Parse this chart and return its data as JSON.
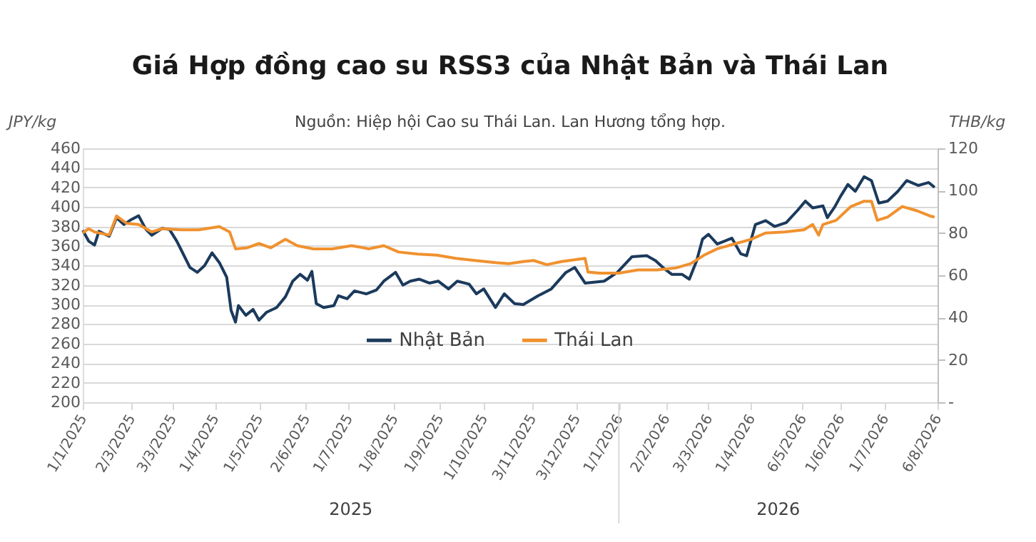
{
  "chart_data": {
    "type": "line",
    "title": "Giá Hợp đồng cao su RSS3 của Nhật Bản và Thái Lan",
    "subtitle": "Nguồn: Hiệp hội Cao su Thái Lan. Lan Hương tổng hợp.",
    "ylabel": "JPY/kg",
    "y2label": "THB/kg",
    "annotations": [
      "2025",
      "2026"
    ],
    "xlim": [
      "2025-01-01",
      "2026-08-06"
    ],
    "xticks": [
      {
        "value": "2025-01-01",
        "label": "1/1/2025"
      },
      {
        "value": "2025-02-03",
        "label": "2/3/2025"
      },
      {
        "value": "2025-03-03",
        "label": "3/3/2025"
      },
      {
        "value": "2025-04-01",
        "label": "1/4/2025"
      },
      {
        "value": "2025-05-01",
        "label": "1/5/2025"
      },
      {
        "value": "2025-06-02",
        "label": "2/6/2025"
      },
      {
        "value": "2025-07-01",
        "label": "1/7/2025"
      },
      {
        "value": "2025-08-01",
        "label": "1/8/2025"
      },
      {
        "value": "2025-09-01",
        "label": "1/9/2025"
      },
      {
        "value": "2025-10-01",
        "label": "1/10/2025"
      },
      {
        "value": "2025-11-03",
        "label": "3/11/2025"
      },
      {
        "value": "2025-12-03",
        "label": "3/12/2025"
      },
      {
        "value": "2026-01-01",
        "label": "1/1/2026"
      },
      {
        "value": "2026-02-02",
        "label": "2/2/2026"
      },
      {
        "value": "2026-03-03",
        "label": "3/3/2026"
      },
      {
        "value": "2026-04-01",
        "label": "1/4/2026"
      },
      {
        "value": "2026-05-06",
        "label": "6/5/2026"
      },
      {
        "value": "2026-06-01",
        "label": "1/6/2026"
      },
      {
        "value": "2026-07-01",
        "label": "1/7/2026"
      },
      {
        "value": "2026-08-06",
        "label": "6/8/2026"
      }
    ],
    "ylim": [
      200,
      460
    ],
    "yticks": [
      200,
      220,
      240,
      260,
      280,
      300,
      320,
      340,
      360,
      380,
      400,
      420,
      440,
      460
    ],
    "y2lim": [
      0,
      120
    ],
    "y2ticks": [
      {
        "value": 0,
        "label": "-"
      },
      20,
      40,
      60,
      80,
      100,
      120
    ],
    "grid": "y",
    "legend": "bottom",
    "line_style": "solid",
    "series": [
      {
        "name": "Nhật Bản",
        "color": "#1b3a5c",
        "x": [
          "2025-01-01",
          "2025-01-05",
          "2025-01-09",
          "2025-01-12",
          "2025-01-19",
          "2025-01-24",
          "2025-01-29",
          "2025-02-03",
          "2025-02-08",
          "2025-02-13",
          "2025-02-17",
          "2025-02-24",
          "2025-03-01",
          "2025-03-06",
          "2025-03-10",
          "2025-03-15",
          "2025-03-20",
          "2025-03-25",
          "2025-03-30",
          "2025-04-04",
          "2025-04-09",
          "2025-04-12",
          "2025-04-15",
          "2025-04-17",
          "2025-04-22",
          "2025-04-27",
          "2025-05-01",
          "2025-05-06",
          "2025-05-13",
          "2025-05-19",
          "2025-05-24",
          "2025-05-29",
          "2025-06-03",
          "2025-06-06",
          "2025-06-09",
          "2025-06-14",
          "2025-06-21",
          "2025-06-24",
          "2025-06-30",
          "2025-07-05",
          "2025-07-13",
          "2025-07-20",
          "2025-07-25",
          "2025-08-02",
          "2025-08-07",
          "2025-08-12",
          "2025-08-18",
          "2025-08-25",
          "2025-08-31",
          "2025-09-07",
          "2025-09-13",
          "2025-09-21",
          "2025-09-26",
          "2025-10-01",
          "2025-10-09",
          "2025-10-15",
          "2025-10-22",
          "2025-10-28",
          "2025-11-07",
          "2025-11-16",
          "2025-11-26",
          "2025-12-02",
          "2025-12-09",
          "2025-12-22",
          "2025-12-31",
          "2026-01-10",
          "2026-01-20",
          "2026-01-26",
          "2026-01-31",
          "2026-02-06",
          "2026-02-13",
          "2026-02-18",
          "2026-02-23",
          "2026-02-27",
          "2026-03-03",
          "2026-03-09",
          "2026-03-19",
          "2026-03-25",
          "2026-03-29",
          "2026-04-04",
          "2026-04-11",
          "2026-04-17",
          "2026-04-25",
          "2026-05-03",
          "2026-05-08",
          "2026-05-13",
          "2026-05-20",
          "2026-05-23",
          "2026-05-28",
          "2026-06-01",
          "2026-06-06",
          "2026-06-11",
          "2026-06-17",
          "2026-06-22",
          "2026-06-27",
          "2026-07-03",
          "2026-07-10",
          "2026-07-16",
          "2026-07-24",
          "2026-07-31",
          "2026-08-04"
        ],
        "values": [
          376,
          365,
          361,
          375,
          370,
          389,
          382,
          387,
          391,
          377,
          371,
          378,
          377,
          365,
          353,
          338,
          333,
          340,
          353,
          343,
          328,
          294,
          282,
          299,
          289,
          295,
          284,
          292,
          297,
          308,
          324,
          331,
          325,
          334,
          301,
          297,
          299,
          309,
          306,
          314,
          311,
          315,
          324,
          333,
          320,
          324,
          326,
          322,
          324,
          316,
          324,
          321,
          311,
          316,
          297,
          311,
          301,
          300,
          309,
          316,
          333,
          338,
          322,
          324,
          333,
          349,
          350,
          345,
          338,
          331,
          331,
          326,
          345,
          367,
          372,
          362,
          368,
          352,
          350,
          382,
          386,
          380,
          384,
          397,
          406,
          399,
          401,
          389,
          400,
          411,
          423,
          416,
          431,
          427,
          404,
          406,
          416,
          427,
          422,
          425,
          420
        ]
      },
      {
        "name": "Thái Lan",
        "color": "#f0912e",
        "axis": "y2",
        "x": [
          "2025-01-01",
          "2025-01-05",
          "2025-01-09",
          "2025-01-19",
          "2025-01-24",
          "2025-01-31",
          "2025-02-08",
          "2025-02-17",
          "2025-02-24",
          "2025-03-09",
          "2025-03-21",
          "2025-04-04",
          "2025-04-11",
          "2025-04-15",
          "2025-04-23",
          "2025-05-01",
          "2025-05-09",
          "2025-05-19",
          "2025-05-27",
          "2025-06-07",
          "2025-06-20",
          "2025-07-03",
          "2025-07-15",
          "2025-07-25",
          "2025-08-04",
          "2025-08-17",
          "2025-08-30",
          "2025-09-12",
          "2025-09-25",
          "2025-10-09",
          "2025-10-18",
          "2025-10-28",
          "2025-11-04",
          "2025-11-13",
          "2025-11-23",
          "2025-12-09",
          "2025-12-11",
          "2025-12-19",
          "2026-01-01",
          "2026-01-14",
          "2026-01-27",
          "2026-02-09",
          "2026-02-19",
          "2026-02-28",
          "2026-03-09",
          "2026-03-19",
          "2026-04-01",
          "2026-04-11",
          "2026-04-24",
          "2026-05-07",
          "2026-05-13",
          "2026-05-17",
          "2026-05-20",
          "2026-05-29",
          "2026-06-08",
          "2026-06-17",
          "2026-06-22",
          "2026-06-26",
          "2026-07-03",
          "2026-07-13",
          "2026-07-23",
          "2026-08-01",
          "2026-08-04"
        ],
        "values": [
          80,
          82,
          80.5,
          79,
          88,
          84.5,
          84,
          80.5,
          82,
          81.5,
          81.5,
          83,
          80.5,
          72.5,
          73,
          75,
          73,
          77,
          74,
          72.5,
          72.5,
          74,
          72.5,
          74,
          71,
          70,
          69.5,
          68,
          67,
          66,
          65.5,
          66.5,
          67,
          65,
          66.5,
          68,
          61.5,
          61,
          61,
          62.5,
          62.5,
          63.5,
          65.5,
          69.5,
          72.5,
          74.5,
          77,
          80,
          80.5,
          81.5,
          84,
          79,
          84,
          86,
          92.5,
          95,
          95,
          86,
          87.5,
          92.5,
          90.5,
          88,
          87.5
        ]
      }
    ]
  }
}
